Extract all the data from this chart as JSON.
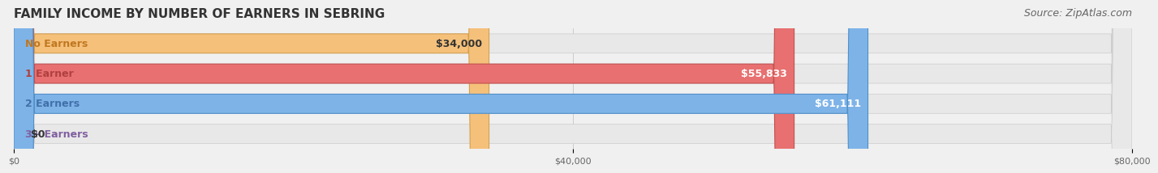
{
  "title": "FAMILY INCOME BY NUMBER OF EARNERS IN SEBRING",
  "source": "Source: ZipAtlas.com",
  "categories": [
    "No Earners",
    "1 Earner",
    "2 Earners",
    "3+ Earners"
  ],
  "values": [
    34000,
    55833,
    61111,
    0
  ],
  "bar_colors": [
    "#F5C07A",
    "#E87070",
    "#7EB3E8",
    "#C4A8D8"
  ],
  "bar_edge_colors": [
    "#D4A050",
    "#C05050",
    "#5090C8",
    "#A080B8"
  ],
  "label_colors": [
    "#C07820",
    "#B04040",
    "#4070A8",
    "#8060A0"
  ],
  "value_labels": [
    "$34,000",
    "$55,833",
    "$61,111",
    "$0"
  ],
  "value_label_colors": [
    "#333333",
    "#ffffff",
    "#ffffff",
    "#333333"
  ],
  "xlim": [
    0,
    80000
  ],
  "xtick_values": [
    0,
    40000,
    80000
  ],
  "xtick_labels": [
    "$0",
    "$40,000",
    "$80,000"
  ],
  "background_color": "#f0f0f0",
  "bar_bg_color": "#e8e8e8",
  "title_fontsize": 11,
  "source_fontsize": 9,
  "label_fontsize": 9,
  "value_fontsize": 9
}
